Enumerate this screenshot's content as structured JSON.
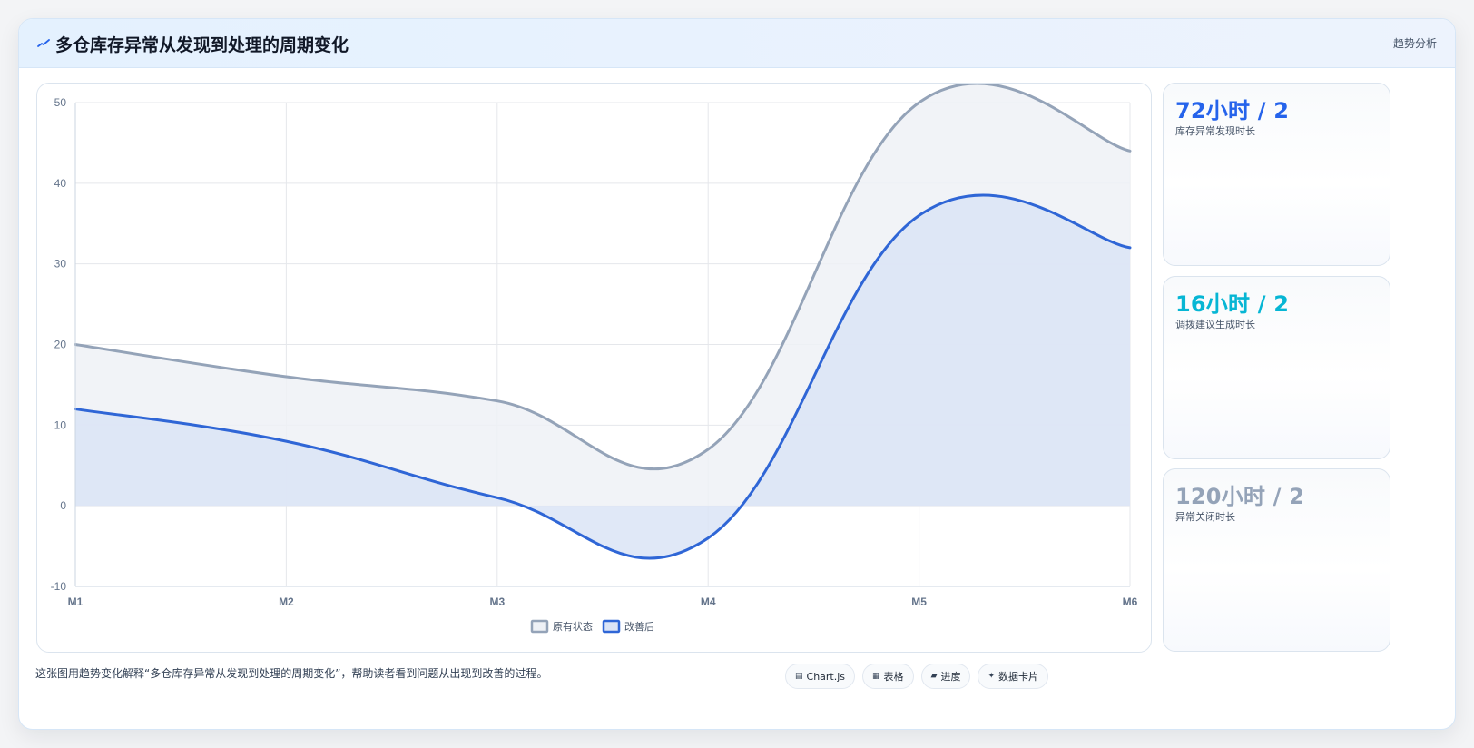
{
  "header": {
    "title": "多仓库存异常从发现到处理的周期变化",
    "link": "趋势分析",
    "accent": "#2563eb"
  },
  "kpis": [
    {
      "value": "72小时 / 2",
      "label": "库存异常发现时长",
      "color": "#2563eb"
    },
    {
      "value": "16小时 / 2",
      "label": "调拨建议生成时长",
      "color": "#06b6d4"
    },
    {
      "value": "120小时 / 2",
      "label": "异常关闭时长",
      "color": "#94a3b8"
    }
  ],
  "footer": {
    "note": "这张图用趋势变化解释“多仓库存异常从发现到处理的周期变化”，帮助读者看到问题从出现到改善的过程。",
    "chips": [
      {
        "icon": "table-icon",
        "glyph": "▤",
        "label": "Chart.js"
      },
      {
        "icon": "grid-icon",
        "glyph": "▦",
        "label": "表格"
      },
      {
        "icon": "progress-icon",
        "glyph": "▰",
        "label": "进度"
      },
      {
        "icon": "sparkle-icon",
        "glyph": "✦",
        "label": "数据卡片"
      }
    ]
  },
  "chart_data": {
    "type": "area",
    "categories": [
      "M1",
      "M2",
      "M3",
      "M4",
      "M5",
      "M6"
    ],
    "ylim": [
      -10,
      50
    ],
    "yticks": [
      50,
      40,
      30,
      20,
      10,
      0,
      -10
    ],
    "grid": true,
    "legend_position": "bottom",
    "series": [
      {
        "name": "原有状态",
        "values": [
          20,
          16,
          13,
          7,
          50,
          44
        ],
        "color": "#94a3b8",
        "fill": "#eef1f6"
      },
      {
        "name": "改善后",
        "values": [
          12,
          8,
          1,
          -4,
          36,
          32
        ],
        "color": "#2f66d6",
        "fill": "#dbe4f6"
      }
    ]
  }
}
